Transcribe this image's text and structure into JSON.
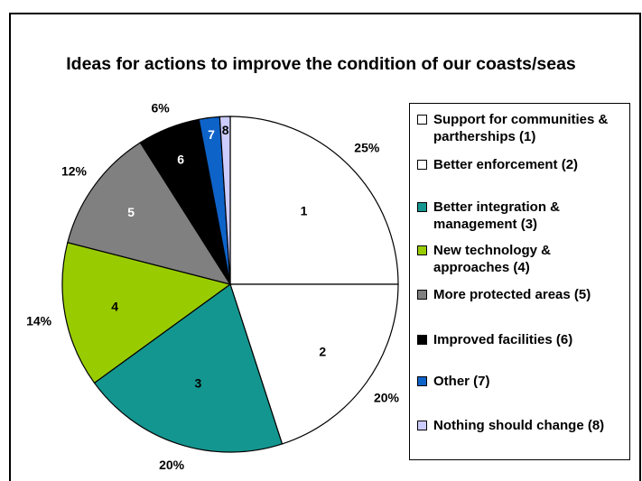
{
  "chart_data": {
    "type": "pie",
    "title": "Ideas for actions to improve the condition of our coasts/seas",
    "slices": [
      {
        "id": "1",
        "label": "Support for communities & partherships (1)",
        "percent_label": "25%",
        "value": 25,
        "color": "#ffffff",
        "label_color": "#000000"
      },
      {
        "id": "2",
        "label": "Better enforcement (2)",
        "percent_label": "20%",
        "value": 20,
        "color": "#ffffff",
        "label_color": "#000000"
      },
      {
        "id": "3",
        "label": "Better integration & management (3)",
        "percent_label": "20%",
        "value": 20,
        "color": "#149690",
        "label_color": "#000000"
      },
      {
        "id": "4",
        "label": "New technology & approaches (4)",
        "percent_label": "14%",
        "value": 14,
        "color": "#99cc00",
        "label_color": "#000000"
      },
      {
        "id": "5",
        "label": "More protected areas (5)",
        "percent_label": "12%",
        "value": 12,
        "color": "#808080",
        "label_color": "#ffffff"
      },
      {
        "id": "6",
        "label": "Improved facilities (6)",
        "percent_label": "6%",
        "value": 6,
        "color": "#000000",
        "label_color": "#ffffff"
      },
      {
        "id": "7",
        "label": "Other (7)",
        "percent_label": "",
        "value": 2,
        "color": "#0e63c9",
        "label_color": "#ffffff"
      },
      {
        "id": "8",
        "label": "Nothing should change (8)",
        "percent_label": "",
        "value": 1,
        "color": "#ccccff",
        "label_color": "#000000"
      }
    ],
    "legend_position": "right"
  }
}
